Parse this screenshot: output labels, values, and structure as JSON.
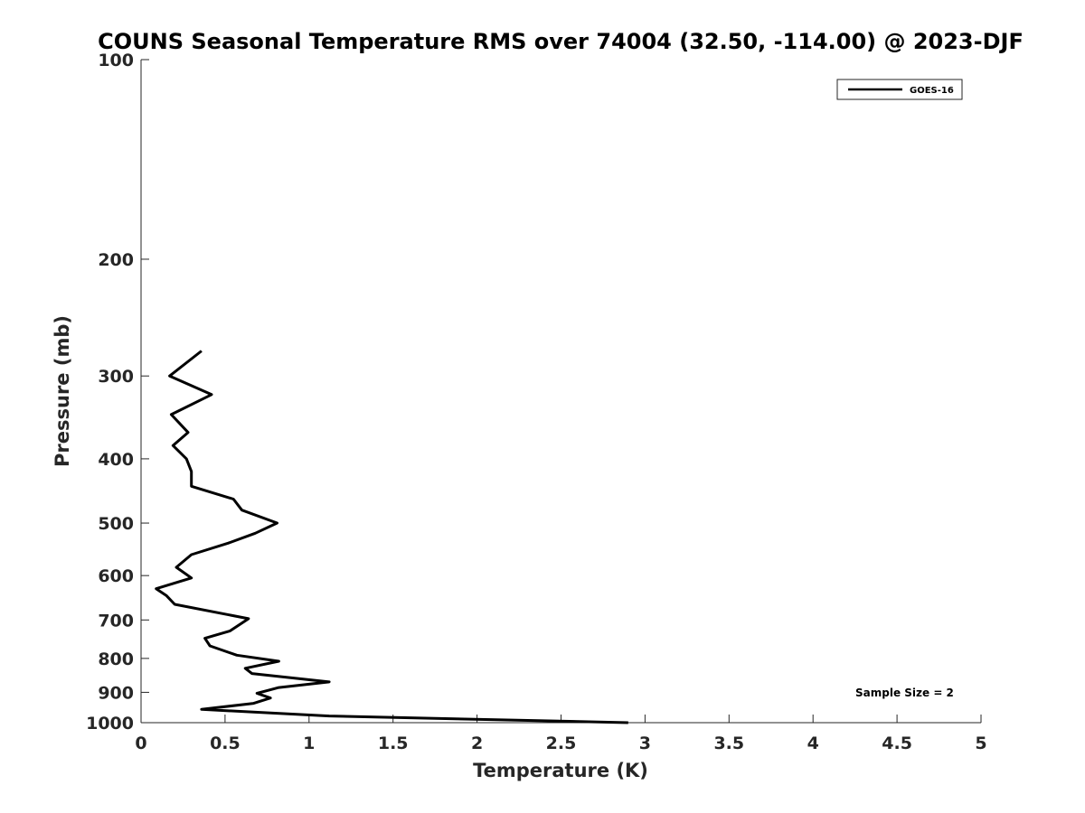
{
  "chart_data": {
    "type": "line",
    "title": "COUNS Seasonal Temperature RMS over 74004 (32.50, -114.00) @ 2023-DJF",
    "xlabel": "Temperature (K)",
    "ylabel": "Pressure (mb)",
    "xlim": [
      0,
      5
    ],
    "ylim": [
      100,
      1000
    ],
    "y_scale": "log",
    "y_reversed": true,
    "x_ticks": [
      "0",
      "0.5",
      "1",
      "1.5",
      "2",
      "2.5",
      "3",
      "3.5",
      "4",
      "4.5",
      "5"
    ],
    "y_ticks": [
      "100",
      "200",
      "300",
      "400",
      "500",
      "600",
      "700",
      "800",
      "900",
      "1000"
    ],
    "grid": false,
    "legend_position": "top-right",
    "series": [
      {
        "name": "GOES-16",
        "color": "#000000",
        "points": [
          [
            0.36,
            275
          ],
          [
            0.17,
            300
          ],
          [
            0.42,
            320
          ],
          [
            0.18,
            343
          ],
          [
            0.28,
            365
          ],
          [
            0.19,
            382
          ],
          [
            0.27,
            400
          ],
          [
            0.3,
            418
          ],
          [
            0.3,
            440
          ],
          [
            0.55,
            460
          ],
          [
            0.6,
            478
          ],
          [
            0.81,
            500
          ],
          [
            0.68,
            518
          ],
          [
            0.52,
            536
          ],
          [
            0.3,
            558
          ],
          [
            0.21,
            583
          ],
          [
            0.3,
            605
          ],
          [
            0.09,
            628
          ],
          [
            0.15,
            643
          ],
          [
            0.2,
            663
          ],
          [
            0.64,
            697
          ],
          [
            0.53,
            727
          ],
          [
            0.38,
            746
          ],
          [
            0.41,
            766
          ],
          [
            0.57,
            791
          ],
          [
            0.82,
            808
          ],
          [
            0.62,
            828
          ],
          [
            0.66,
            843
          ],
          [
            1.12,
            868
          ],
          [
            0.82,
            885
          ],
          [
            0.69,
            903
          ],
          [
            0.77,
            918
          ],
          [
            0.67,
            935
          ],
          [
            0.36,
            955
          ],
          [
            1.12,
            977
          ],
          [
            2.9,
            1000
          ]
        ]
      }
    ],
    "annotation": "Sample Size = 2"
  }
}
